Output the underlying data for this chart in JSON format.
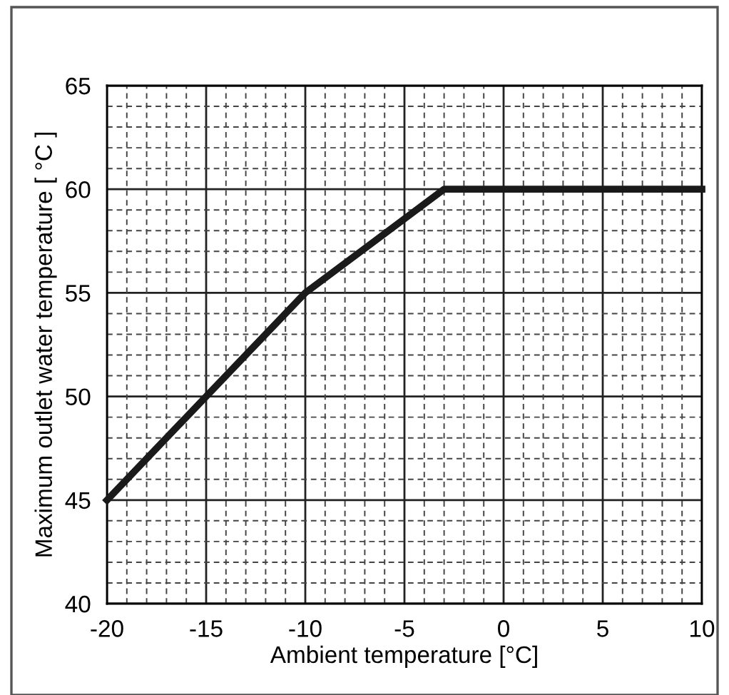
{
  "chart_data": {
    "type": "line",
    "xlabel": "Ambient temperature [°C]",
    "ylabel": "Maximum outlet water temperature [ °C ]",
    "x": [
      -20,
      -15,
      -10,
      -3,
      10
    ],
    "series": [
      {
        "color": "#1a1a1a",
        "values": [
          45,
          50,
          55,
          60,
          60
        ]
      }
    ],
    "xlim": [
      -20,
      10
    ],
    "xticks": [
      -20,
      -15,
      -10,
      -5,
      0,
      5,
      10
    ],
    "ylim": [
      40,
      65
    ],
    "yticks": [
      40,
      45,
      50,
      55,
      60,
      65
    ],
    "grid": true,
    "marker": "none",
    "line_style": "solid"
  }
}
